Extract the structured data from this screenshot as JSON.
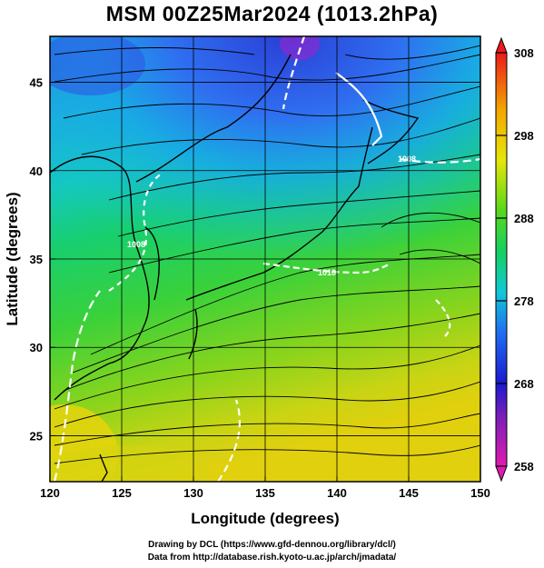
{
  "title": "MSM 00Z25Mar2024 (1013.2hPa)",
  "credits": {
    "line1": "Drawing by DCL (https://www.gfd-dennou.org/library/dcl/)",
    "line2": "Data from http://database.rish.kyoto-u.ac.jp/arch/jmadata/"
  },
  "chart_data": {
    "type": "heatmap",
    "xlabel": "Longitude (degrees)",
    "ylabel": "Latitude  (degrees)",
    "xlim": [
      120,
      150
    ],
    "ylim": [
      22.4,
      47.6
    ],
    "x_ticks": [
      "120",
      "125",
      "130",
      "135",
      "140",
      "145",
      "150"
    ],
    "y_ticks": [
      "25",
      "30",
      "35",
      "40",
      "45"
    ],
    "grid": true,
    "colorbar": {
      "min": 258,
      "max": 308,
      "ticks": [
        "258",
        "268",
        "278",
        "288",
        "298",
        "308"
      ],
      "colors": [
        "#e01ab0",
        "#7a1fb8",
        "#1a1ad0",
        "#1f6cf0",
        "#12c8d8",
        "#16d060",
        "#5ad81a",
        "#e6e60a",
        "#f2a800",
        "#ec1a1a"
      ]
    },
    "contour_labels": [
      "1008",
      "1008",
      "1010"
    ],
    "field": "temperature (K) with surface wind streamlines"
  }
}
